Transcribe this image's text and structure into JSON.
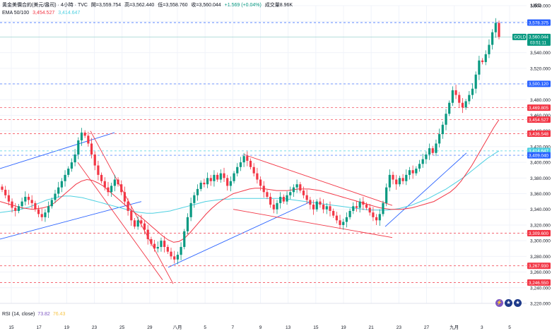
{
  "header": {
    "symbol": "黃金美價合約(美元/盎司) · 4小時 · TVC",
    "open": "開=3,559.754",
    "high": "高=3,562.440",
    "low": "低=3,558.760",
    "close": "收=3,560.044",
    "change": "+1.569 (+0.04%)",
    "volume": "成交量8.96K",
    "ema_label": "EMA 50/100",
    "ema1_value": "3,454.527",
    "ema2_value": "3,414.647"
  },
  "axis": {
    "currency": "USD",
    "price_ticks": [
      "3,600.000",
      "3,580.000",
      "3,560.000",
      "3,540.000",
      "3,520.000",
      "3,500.000",
      "3,480.000",
      "3,460.000",
      "3,440.000",
      "3,420.000",
      "3,400.000",
      "3,380.000",
      "3,360.000",
      "3,340.000",
      "3,320.000",
      "3,300.000",
      "3,280.000",
      "3,260.000",
      "3,240.000",
      "3,220.000"
    ],
    "date_ticks": [
      "15",
      "17",
      "19",
      "23",
      "25",
      "29",
      "八月",
      "5",
      "7",
      "9",
      "13",
      "15",
      "19",
      "21",
      "23",
      "27",
      "九月",
      "3",
      "5"
    ]
  },
  "price_tags": [
    {
      "text": "3,578.375",
      "price": 3578.375,
      "color": "#2962ff"
    },
    {
      "text": "3,500.120",
      "price": 3500.12,
      "color": "#2962ff"
    },
    {
      "text": "3,469.805",
      "price": 3469.805,
      "color": "#f23645"
    },
    {
      "text": "3,454.527",
      "price": 3454.527,
      "color": "#f23645"
    },
    {
      "text": "3,436.548",
      "price": 3436.548,
      "color": "#f23645"
    },
    {
      "text": "3,414.647",
      "price": 3414.647,
      "color": "#4dd0e1"
    },
    {
      "text": "3,409.040",
      "price": 3409.04,
      "color": "#2962ff"
    },
    {
      "text": "3,309.600",
      "price": 3309.6,
      "color": "#f23645"
    },
    {
      "text": "3,267.930",
      "price": 3267.93,
      "color": "#f23645"
    },
    {
      "text": "3,246.550",
      "price": 3246.55,
      "color": "#f23645"
    }
  ],
  "current_tag": {
    "symbol": "GOLD",
    "price_text": "3,560.044",
    "countdown": "03:51:11",
    "price": 3560.044
  },
  "rsi": {
    "label": "RSI (14, close)",
    "value1": "73.82",
    "value2": "76.43"
  },
  "colors": {
    "up": "#089981",
    "down": "#f23645",
    "ema50": "#f23645",
    "ema100": "#4dd0e1",
    "trend_blue": "#2962ff",
    "trend_red": "#f23645"
  },
  "chart_data": {
    "type": "candlestick",
    "title": "黃金美價合約(美元/盎司) · 4小時 · TVC",
    "ylabel": "USD",
    "ylim": [
      3220,
      3600
    ],
    "x_tick_labels": [
      "15",
      "17",
      "19",
      "23",
      "25",
      "29",
      "八月",
      "5",
      "7",
      "9",
      "13",
      "15",
      "19",
      "21",
      "23",
      "27",
      "九月",
      "3",
      "5"
    ],
    "close_path": [
      3365,
      3358,
      3350,
      3342,
      3338,
      3344,
      3350,
      3356,
      3352,
      3348,
      3340,
      3334,
      3330,
      3336,
      3344,
      3352,
      3360,
      3368,
      3376,
      3384,
      3392,
      3400,
      3410,
      3428,
      3438,
      3434,
      3424,
      3410,
      3396,
      3384,
      3376,
      3368,
      3362,
      3370,
      3378,
      3372,
      3362,
      3350,
      3338,
      3326,
      3318,
      3326,
      3322,
      3314,
      3302,
      3296,
      3290,
      3292,
      3300,
      3292,
      3286,
      3280,
      3276,
      3282,
      3292,
      3312,
      3330,
      3348,
      3358,
      3366,
      3374,
      3372,
      3380,
      3376,
      3384,
      3378,
      3386,
      3380,
      3370,
      3376,
      3386,
      3394,
      3400,
      3408,
      3402,
      3394,
      3386,
      3378,
      3370,
      3362,
      3356,
      3346,
      3340,
      3348,
      3356,
      3350,
      3358,
      3362,
      3368,
      3372,
      3364,
      3358,
      3352,
      3346,
      3340,
      3350,
      3346,
      3340,
      3344,
      3338,
      3332,
      3326,
      3320,
      3324,
      3330,
      3338,
      3344,
      3342,
      3350,
      3346,
      3342,
      3336,
      3330,
      3326,
      3334,
      3348,
      3368,
      3384,
      3378,
      3372,
      3380,
      3376,
      3384,
      3390,
      3386,
      3392,
      3398,
      3404,
      3410,
      3418,
      3412,
      3424,
      3436,
      3448,
      3462,
      3476,
      3492,
      3486,
      3476,
      3470,
      3478,
      3486,
      3494,
      3512,
      3530,
      3528,
      3538,
      3550,
      3566,
      3578,
      3560
    ],
    "ema50_path": [
      3350,
      3348,
      3346,
      3344,
      3342,
      3341,
      3340,
      3341,
      3342,
      3344,
      3348,
      3354,
      3360,
      3366,
      3372,
      3376,
      3378,
      3377,
      3374,
      3370,
      3364,
      3358,
      3352,
      3346,
      3340,
      3335,
      3330,
      3324,
      3318,
      3312,
      3306,
      3301,
      3298,
      3299,
      3303,
      3310,
      3318,
      3326,
      3334,
      3341,
      3347,
      3352,
      3356,
      3360,
      3362,
      3364,
      3366,
      3367,
      3367,
      3366,
      3365,
      3364,
      3364,
      3364,
      3365,
      3366,
      3366,
      3366,
      3365,
      3364,
      3362,
      3360,
      3358,
      3356,
      3354,
      3352,
      3350,
      3348,
      3346,
      3344,
      3342,
      3341,
      3340,
      3340,
      3340,
      3341,
      3342,
      3344,
      3346,
      3348,
      3350,
      3354,
      3358,
      3362,
      3368,
      3376,
      3386,
      3396,
      3408,
      3420,
      3432,
      3444,
      3454.5
    ],
    "ema100_path": [
      3336,
      3337,
      3338,
      3339,
      3341,
      3343,
      3346,
      3349,
      3352,
      3354,
      3356,
      3357,
      3357,
      3356,
      3355,
      3353,
      3351,
      3349,
      3347,
      3345,
      3343,
      3341,
      3339,
      3337,
      3336,
      3335,
      3335,
      3336,
      3337,
      3338,
      3340,
      3342,
      3344,
      3346,
      3348,
      3350,
      3351,
      3352,
      3353,
      3353,
      3354,
      3354,
      3354,
      3354,
      3354,
      3354,
      3354,
      3354,
      3354,
      3353,
      3352,
      3351,
      3350,
      3349,
      3348,
      3347,
      3346,
      3345,
      3344,
      3343,
      3342,
      3341,
      3340,
      3339,
      3339,
      3339,
      3339,
      3340,
      3341,
      3343,
      3345,
      3348,
      3351,
      3354,
      3358,
      3362,
      3366,
      3371,
      3376,
      3381,
      3387,
      3393,
      3399,
      3405,
      3410,
      3414.6
    ],
    "horizontal_levels": [
      3578.375,
      3500.12,
      3469.805,
      3454.527,
      3436.548,
      3414.647,
      3409.04,
      3309.6,
      3267.93,
      3246.55
    ],
    "last": {
      "open": 3559.754,
      "high": 3562.44,
      "low": 3558.76,
      "close": 3560.044
    }
  }
}
